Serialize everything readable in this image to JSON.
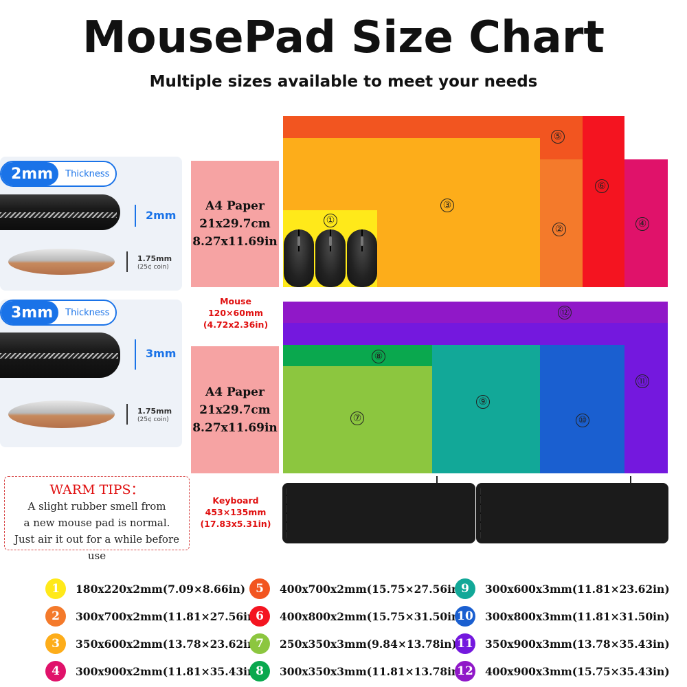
{
  "header": {
    "title": "MousePad Size Chart",
    "subtitle": "Multiple sizes available to meet your needs"
  },
  "thickness_2mm": {
    "badge_value": "2mm",
    "badge_label": "Thickness",
    "pad_measure": "2mm",
    "coin_measure": "1.75mm",
    "coin_note": "(25¢ coin)"
  },
  "thickness_3mm": {
    "badge_value": "3mm",
    "badge_label": "Thickness",
    "pad_measure": "3mm",
    "coin_measure": "1.75mm",
    "coin_note": "(25¢ coin)"
  },
  "a4_top": {
    "line1": "A4 Paper",
    "line2": "21x29.7cm",
    "line3": "8.27x11.69in"
  },
  "a4_bottom": {
    "line1": "A4 Paper",
    "line2": "21x29.7cm",
    "line3": "8.27x11.69in"
  },
  "mouse_ref": {
    "line1": "Mouse",
    "line2": "120×60mm",
    "line3": "(4.72x2.36in)"
  },
  "keyboard_ref": {
    "line1": "Keyboard",
    "line2": "453×135mm",
    "line3": "(17.83x5.31in)"
  },
  "warm_tips": {
    "title": "WARM TIPS：",
    "line1": "A slight rubber smell from",
    "line2": "a new mouse pad is normal.",
    "line3": "Just air it out for a while before use"
  },
  "markers": {
    "m1": "①",
    "m2": "②",
    "m3": "③",
    "m4": "④",
    "m5": "⑤",
    "m6": "⑥",
    "m7": "⑦",
    "m8": "⑧",
    "m9": "⑨",
    "m10": "⑩",
    "m11": "⑪",
    "m12": "⑫"
  },
  "colors": {
    "size1": "#ffe91a",
    "size2": "#f47a2b",
    "size3": "#fdad1a",
    "size4": "#e0126a",
    "size5": "#f25520",
    "size6": "#f41420",
    "size7": "#8cc63f",
    "size8": "#0aa84e",
    "size9": "#12a898",
    "size10": "#1a5fd0",
    "size11": "#7418de",
    "size12": "#9018c8"
  },
  "legend": [
    {
      "num": "1",
      "text": "180x220x2mm(7.09×8.66in)",
      "color": "#ffe91a"
    },
    {
      "num": "2",
      "text": "300x700x2mm(11.81×27.56in)",
      "color": "#f47a2b"
    },
    {
      "num": "3",
      "text": "350x600x2mm(13.78×23.62in)",
      "color": "#fdad1a"
    },
    {
      "num": "4",
      "text": "300x900x2mm(11.81×35.43in)",
      "color": "#e0126a"
    },
    {
      "num": "5",
      "text": "400x700x2mm(15.75×27.56in)",
      "color": "#f25520"
    },
    {
      "num": "6",
      "text": "400x800x2mm(15.75×31.50in)",
      "color": "#f41420"
    },
    {
      "num": "7",
      "text": "250x350x3mm(9.84×13.78in)",
      "color": "#8cc63f"
    },
    {
      "num": "8",
      "text": "300x350x3mm(11.81×13.78in)",
      "color": "#0aa84e"
    },
    {
      "num": "9",
      "text": "300x600x3mm(11.81×23.62in)",
      "color": "#12a898"
    },
    {
      "num": "10",
      "text": "300x800x3mm(11.81×31.50in)",
      "color": "#1a5fd0"
    },
    {
      "num": "11",
      "text": "350x900x3mm(13.78×35.43in)",
      "color": "#7418de"
    },
    {
      "num": "12",
      "text": "400x900x3mm(15.75×35.43in)",
      "color": "#9018c8"
    }
  ]
}
